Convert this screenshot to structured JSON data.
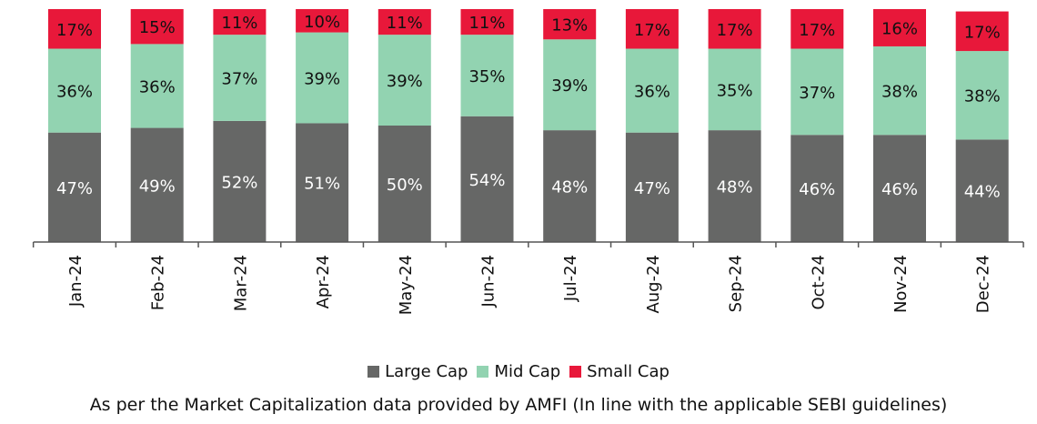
{
  "chart_data": {
    "type": "bar",
    "stacked": true,
    "categories": [
      "Jan-24",
      "Feb-24",
      "Mar-24",
      "Apr-24",
      "May-24",
      "Jun-24",
      "Jul-24",
      "Aug-24",
      "Sep-24",
      "Oct-24",
      "Nov-24",
      "Dec-24"
    ],
    "series": [
      {
        "name": "Large Cap",
        "color": "#666766",
        "values": [
          47,
          49,
          52,
          51,
          50,
          54,
          48,
          47,
          48,
          46,
          46,
          44
        ]
      },
      {
        "name": "Mid Cap",
        "color": "#92d3b1",
        "values": [
          36,
          36,
          37,
          39,
          39,
          35,
          39,
          36,
          35,
          37,
          38,
          38
        ]
      },
      {
        "name": "Small Cap",
        "color": "#e8183a",
        "values": [
          17,
          15,
          11,
          10,
          11,
          11,
          13,
          17,
          17,
          17,
          16,
          17
        ]
      }
    ],
    "value_suffix": "%",
    "legend_position": "bottom",
    "grid": false
  },
  "caption": "As per the Market Capitalization data provided by AMFI (In line with the applicable SEBI guidelines)"
}
